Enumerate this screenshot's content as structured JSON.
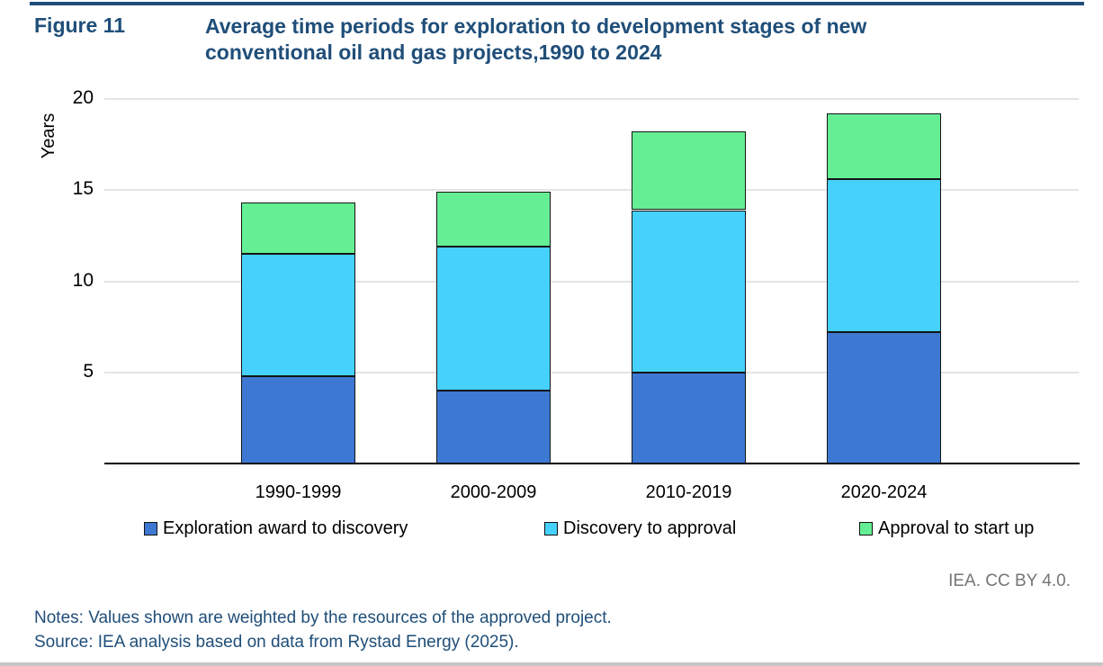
{
  "header": {
    "figure_label": "Figure 11",
    "title_line1": "Average time periods for exploration to development stages of new",
    "title_line2": "conventional oil and gas projects,1990 to 2024"
  },
  "chart_data": {
    "type": "bar",
    "stacked": true,
    "title": "Average time periods for exploration to development stages of new conventional oil and gas projects,1990 to 2024",
    "ylabel": "Years",
    "xlabel": "",
    "ylim": [
      0,
      20
    ],
    "yticks": [
      5,
      10,
      15,
      20
    ],
    "grid": true,
    "legend_position": "bottom",
    "categories": [
      "1990-1999",
      "2000-2009",
      "2010-2019",
      "2020-2024"
    ],
    "series": [
      {
        "name": "Exploration award to discovery",
        "color": "#3d79d3",
        "values": [
          4.8,
          4.0,
          5.0,
          7.2
        ]
      },
      {
        "name": "Discovery to approval",
        "color": "#45d1fc",
        "values": [
          6.7,
          7.9,
          8.9,
          8.4
        ]
      },
      {
        "name": "Approval to start up",
        "color": "#65ef95",
        "values": [
          2.8,
          3.0,
          4.3,
          3.6
        ]
      }
    ],
    "totals": [
      14.3,
      14.9,
      18.2,
      19.2
    ]
  },
  "attribution": "IEA. CC BY 4.0.",
  "footer": {
    "notes": "Notes: Values shown are weighted by the resources of the approved project.",
    "source": "Source: IEA analysis based on data from Rystad Energy (2025)."
  },
  "colors": {
    "navy": "#1f4e79",
    "gray": "#757575",
    "gridline": "#e4e4e4",
    "axis": "#000000"
  }
}
